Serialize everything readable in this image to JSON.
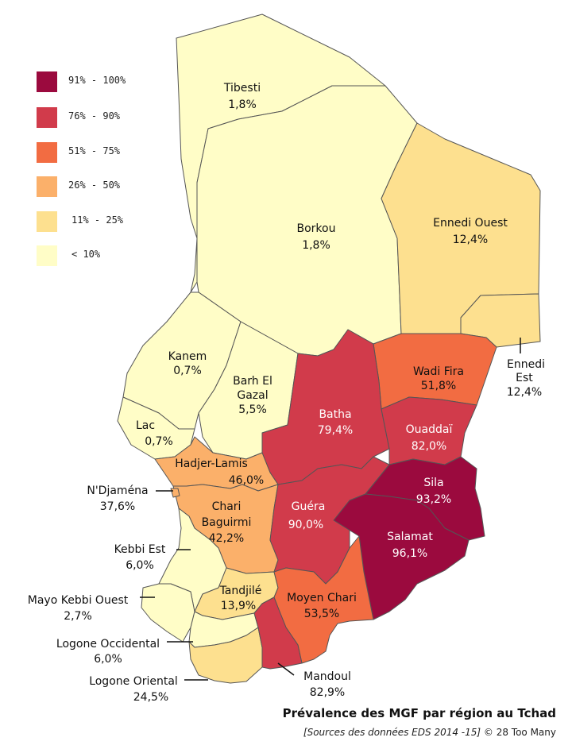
{
  "legend": [
    {
      "label": "91% - 100%",
      "color": "#9b0a3e"
    },
    {
      "label": "76% - 90%",
      "color": "#d13b4b"
    },
    {
      "label": "51% - 75%",
      "color": "#f26c42"
    },
    {
      "label": "26% - 50%",
      "color": "#fbb06a"
    },
    {
      "label": "11% - 25%",
      "color": "#fde08f"
    },
    {
      "label": "< 10%",
      "color": "#fffdc7"
    }
  ],
  "regions": [
    {
      "name": "Tibesti",
      "value": "1,8%",
      "color": "#fffdc7"
    },
    {
      "name": "Borkou",
      "value": "1,8%",
      "color": "#fffdc7"
    },
    {
      "name": "Ennedi Ouest",
      "value": "12,4%",
      "color": "#fde08f"
    },
    {
      "name": "Ennedi Est",
      "name_line1": "Ennedi",
      "name_line2": "Est",
      "value": "12,4%",
      "color": "#fde08f"
    },
    {
      "name": "Kanem",
      "value": "0,7%",
      "color": "#fffdc7"
    },
    {
      "name": "Barh El Gazal",
      "name_line1": "Barh El",
      "name_line2": "Gazal",
      "value": "5,5%",
      "color": "#fffdc7"
    },
    {
      "name": "Lac",
      "value": "0,7%",
      "color": "#fffdc7"
    },
    {
      "name": "Wadi Fira",
      "value": "51,8%",
      "color": "#f26c42"
    },
    {
      "name": "Batha",
      "value": "79,4%",
      "color": "#d13b4b"
    },
    {
      "name": "Ouaddaï",
      "value": "82,0%",
      "color": "#d13b4b"
    },
    {
      "name": "Hadjer-Lamis",
      "value": "46,0%",
      "color": "#fbb06a"
    },
    {
      "name": "N'Djaména",
      "value": "37,6%",
      "color": "#fbb06a"
    },
    {
      "name": "Chari Baguirmi",
      "name_line1": "Chari",
      "name_line2": "Baguirmi",
      "value": "42,2%",
      "color": "#fbb06a"
    },
    {
      "name": "Guéra",
      "value": "90,0%",
      "color": "#d13b4b"
    },
    {
      "name": "Sila",
      "value": "93,2%",
      "color": "#9b0a3e"
    },
    {
      "name": "Salamat",
      "value": "96,1%",
      "color": "#9b0a3e"
    },
    {
      "name": "Kebbi Est",
      "value": "6,0%",
      "color": "#fffdc7"
    },
    {
      "name": "Mayo Kebbi Ouest",
      "value": "2,7%",
      "color": "#fffdc7"
    },
    {
      "name": "Tandjilé",
      "value": "13,9%",
      "color": "#fde08f"
    },
    {
      "name": "Moyen Chari",
      "value": "53,5%",
      "color": "#f26c42"
    },
    {
      "name": "Logone Occidental",
      "value": "6,0%",
      "color": "#fffdc7"
    },
    {
      "name": "Logone Oriental",
      "value": "24,5%",
      "color": "#fde08f"
    },
    {
      "name": "Mandoul",
      "value": "82,9%",
      "color": "#d13b4b"
    }
  ],
  "title": "Prévalence des MGF par région au Tchad",
  "source_italic": "[Sources des données EDS 2014 -15]",
  "source_rest": " © 28 Too Many"
}
